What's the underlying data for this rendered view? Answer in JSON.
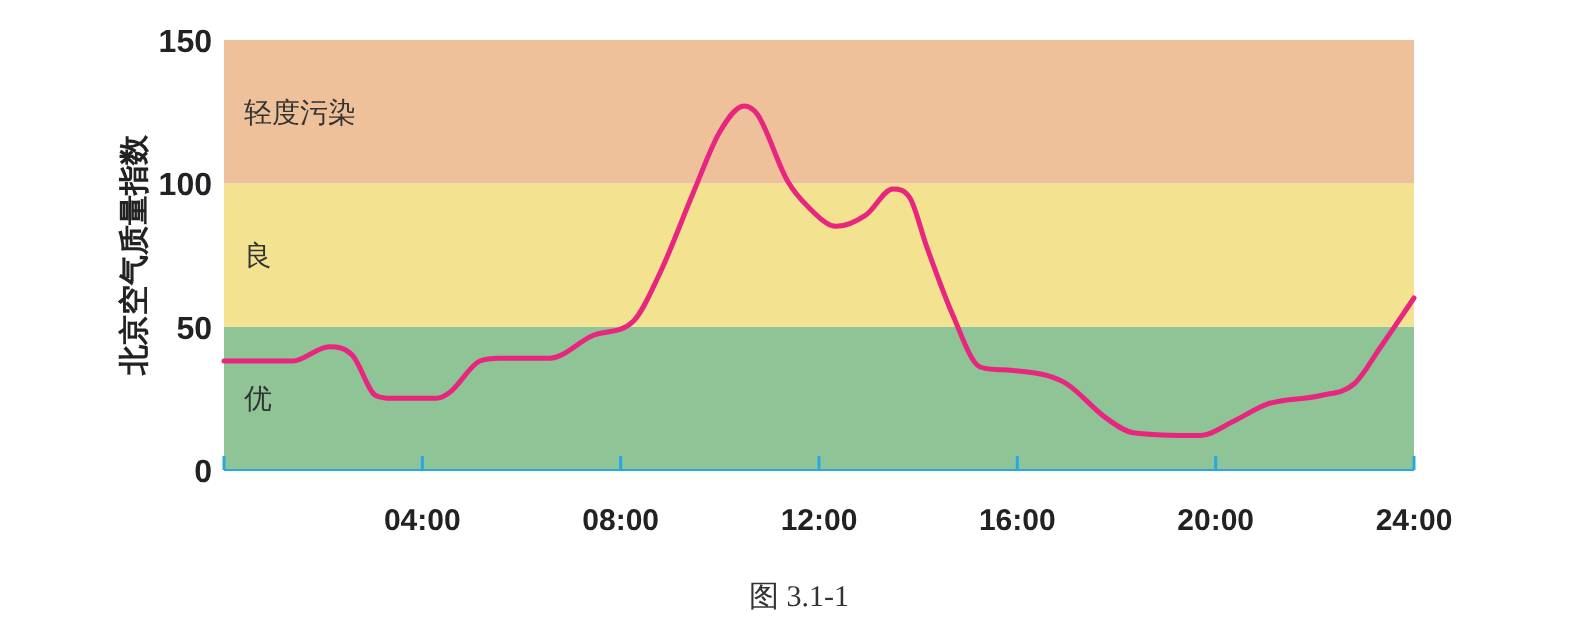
{
  "chart_data": {
    "type": "line",
    "ylabel": "北京空气质量指数",
    "x": [
      0,
      1.38,
      2.12,
      2.59,
      3.06,
      3.4,
      4.28,
      4.55,
      5.16,
      5.56,
      6.57,
      7.45,
      8.26,
      8.8,
      9.47,
      10.0,
      10.49,
      10.76,
      11.36,
      11.77,
      12.35,
      12.95,
      13.49,
      13.83,
      14.17,
      14.7,
      15.24,
      15.64,
      16.59,
      17.0,
      17.8,
      18.34,
      19.69,
      20.36,
      21.04,
      22.12,
      22.79,
      23.33,
      24
    ],
    "series": [
      {
        "color": "#e8257f",
        "values": [
          38,
          38,
          43,
          40,
          26,
          25,
          25,
          27,
          38,
          39,
          39,
          47,
          52,
          69,
          97,
          118,
          127,
          124,
          101,
          92,
          85,
          89,
          98,
          95,
          78,
          54,
          36,
          35,
          33,
          30,
          18,
          13,
          12,
          17,
          23,
          26,
          30,
          43,
          60
        ]
      }
    ],
    "xlim": [
      0,
      24
    ],
    "ylim": [
      0,
      150
    ],
    "xticks": [
      {
        "value": 0,
        "label": null
      },
      {
        "value": 4,
        "label": "04:00"
      },
      {
        "value": 8,
        "label": "08:00"
      },
      {
        "value": 12,
        "label": "12:00"
      },
      {
        "value": 16,
        "label": "16:00"
      },
      {
        "value": 20,
        "label": "20:00"
      },
      {
        "value": 24,
        "label": "24:00"
      }
    ],
    "yticks": [
      0,
      50,
      100,
      150
    ],
    "bands": [
      {
        "axis": "y",
        "from": 0,
        "to": 50,
        "label": "优",
        "color": "#8fc497"
      },
      {
        "axis": "y",
        "from": 50,
        "to": 100,
        "label": "良",
        "color": "#f3e28f"
      },
      {
        "axis": "y",
        "from": 100,
        "to": 150,
        "label": "轻度污染",
        "color": "#eec19a"
      }
    ],
    "marker": "none",
    "grid": false,
    "annotations": [
      "图 3.1-1"
    ]
  }
}
